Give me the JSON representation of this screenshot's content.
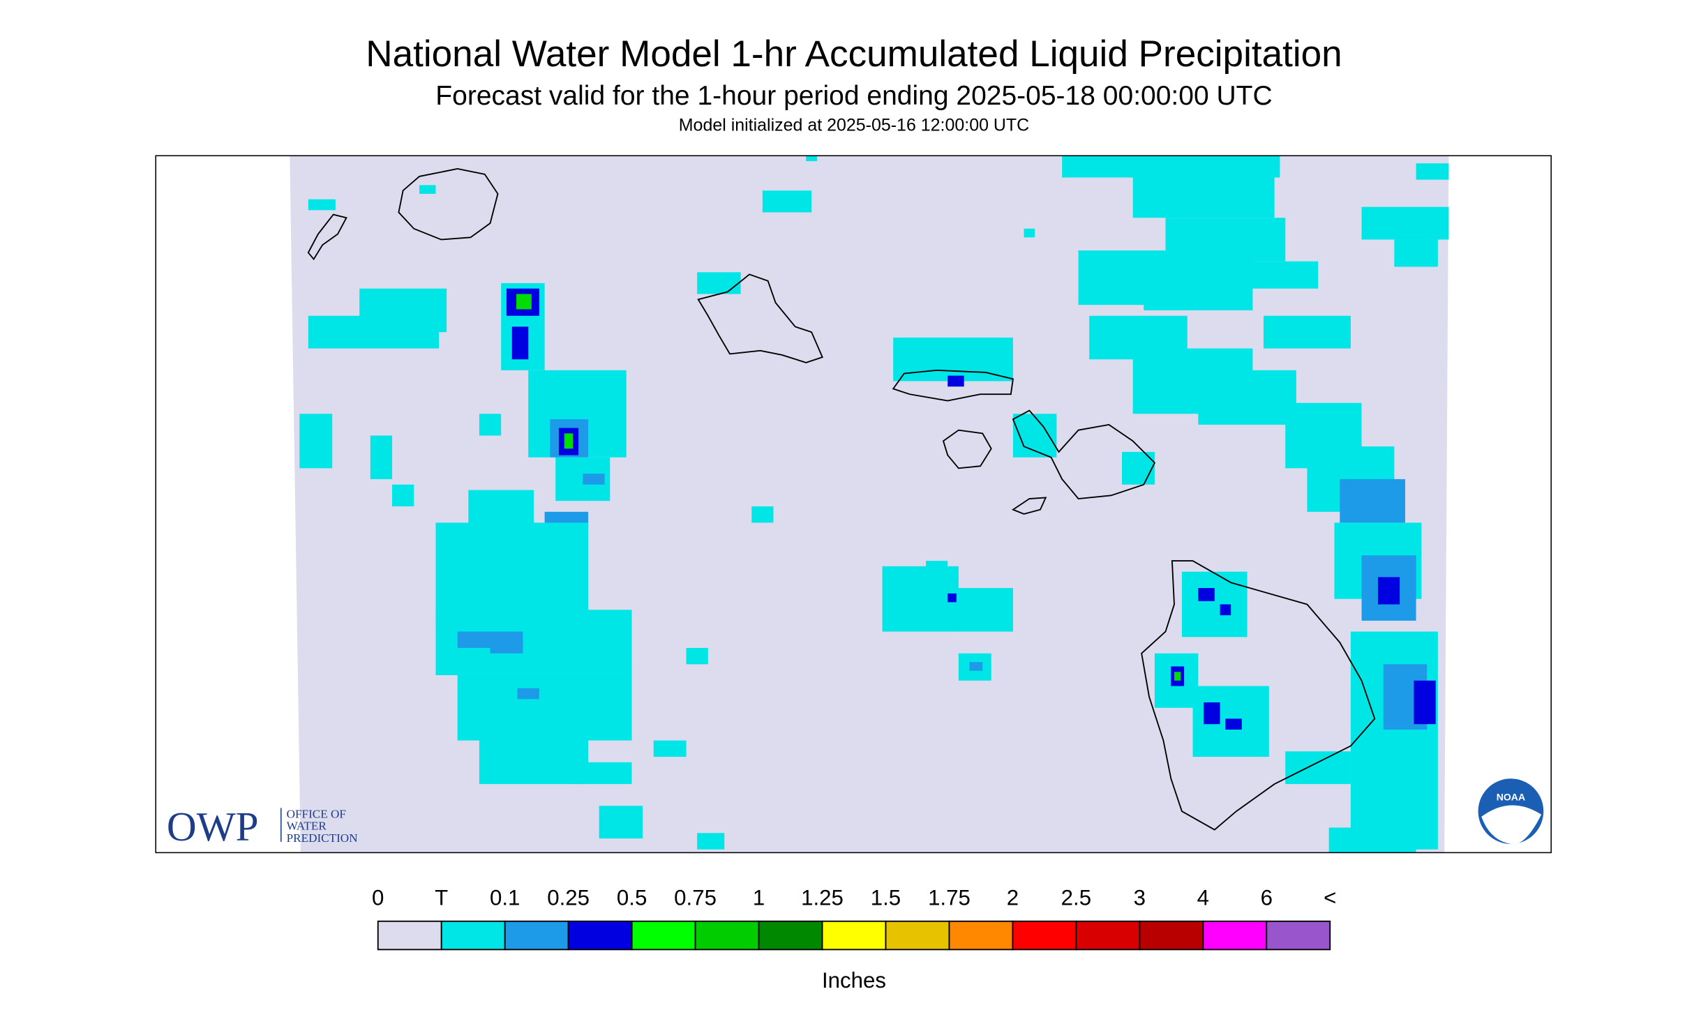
{
  "header": {
    "title": "National Water Model 1-hr Accumulated Liquid Precipitation",
    "subtitle": "Forecast valid for the 1-hour period ending 2025-05-18 00:00:00 UTC",
    "init": "Model initialized at 2025-05-16 12:00:00 UTC"
  },
  "legend": {
    "labels": [
      "0",
      "T",
      "0.1",
      "0.25",
      "0.5",
      "0.75",
      "1",
      "1.25",
      "1.5",
      "1.75",
      "2",
      "2.5",
      "3",
      "4",
      "6",
      "<"
    ],
    "colors": [
      "#dcdcee",
      "#00e5e5",
      "#1e9be8",
      "#0000e0",
      "#00ff00",
      "#00cc00",
      "#008800",
      "#ffff00",
      "#e6c200",
      "#ff8800",
      "#ff0000",
      "#d80000",
      "#b80000",
      "#ff00ff",
      "#9955cc"
    ],
    "unit": "Inches"
  },
  "logos": {
    "owp": "OWP",
    "owp_lines": [
      "OFFICE OF",
      "WATER",
      "PREDICTION"
    ],
    "noaa": "NOAA"
  }
}
